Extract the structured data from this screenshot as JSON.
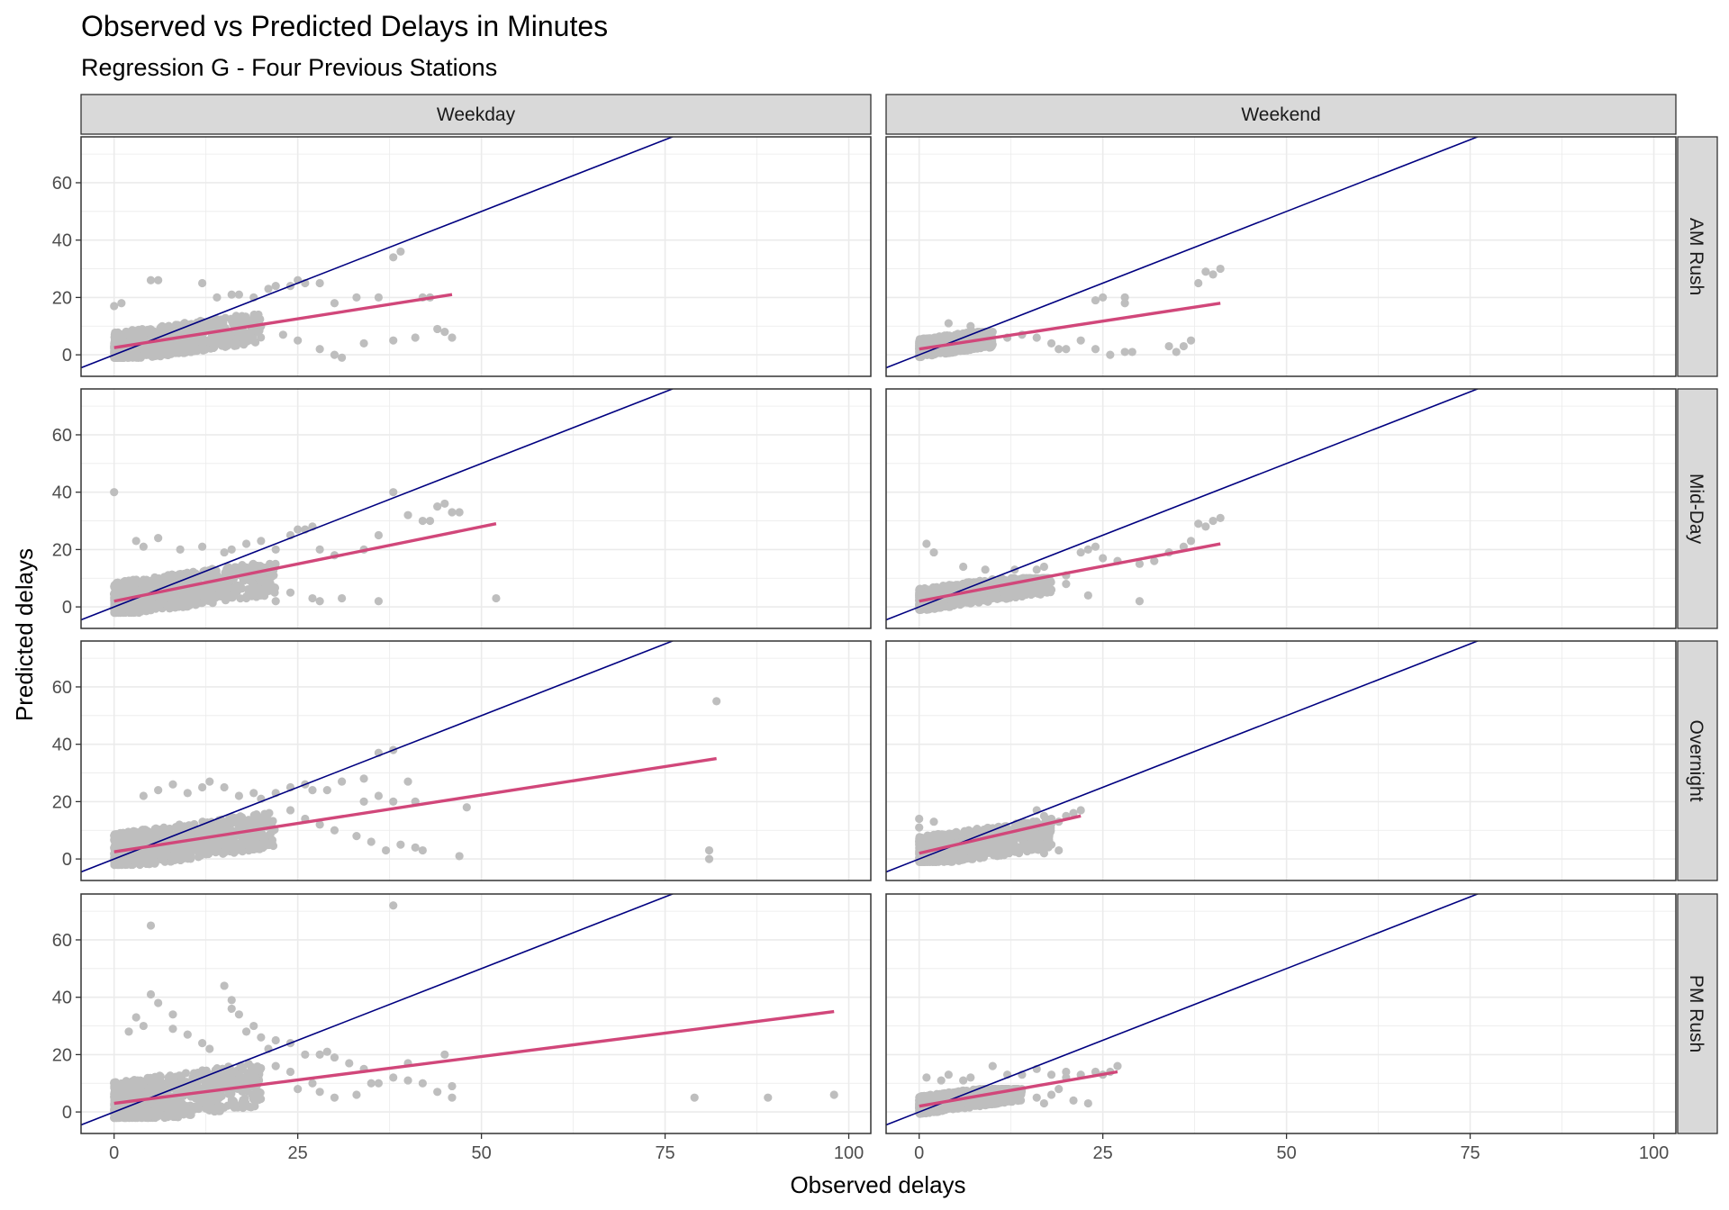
{
  "chart_data": {
    "type": "scatter",
    "title": "Observed vs Predicted Delays in Minutes",
    "subtitle": "Regression G - Four Previous Stations",
    "xlabel": "Observed delays",
    "ylabel": "Predicted delays",
    "xlim": [
      -4.5,
      103
    ],
    "ylim": [
      -7.5,
      76
    ],
    "x_ticks": [
      0,
      25,
      50,
      75,
      100
    ],
    "y_ticks": [
      0,
      20,
      40,
      60
    ],
    "grid": true,
    "columns": [
      "Weekday",
      "Weekend"
    ],
    "rows": [
      "AM Rush",
      "Mid-Day",
      "Overnight",
      "PM Rush"
    ],
    "colors": {
      "points": "#bebebe",
      "fit_line": "#d1477a",
      "identity_line": "#000080",
      "strip_fill": "#d9d9d9",
      "panel_border": "#333333",
      "grid": "#ebebeb"
    },
    "panels": [
      {
        "column": "Weekday",
        "row": "AM Rush",
        "fit": {
          "x": [
            0,
            46
          ],
          "y": [
            2.5,
            21
          ]
        },
        "cluster": {
          "x_max": 20,
          "y_min": -1,
          "y_max": 14
        },
        "points": [
          [
            0,
            17
          ],
          [
            1,
            18
          ],
          [
            5,
            26
          ],
          [
            6,
            26
          ],
          [
            12,
            25
          ],
          [
            14,
            20
          ],
          [
            16,
            21
          ],
          [
            17,
            21
          ],
          [
            19,
            20
          ],
          [
            21,
            23
          ],
          [
            22,
            24
          ],
          [
            24,
            24
          ],
          [
            25,
            26
          ],
          [
            26,
            25
          ],
          [
            28,
            25
          ],
          [
            30,
            18
          ],
          [
            33,
            20
          ],
          [
            36,
            20
          ],
          [
            38,
            34
          ],
          [
            39,
            36
          ],
          [
            42,
            20
          ],
          [
            43,
            20
          ],
          [
            38,
            5
          ],
          [
            41,
            6
          ],
          [
            44,
            9
          ],
          [
            45,
            8
          ],
          [
            46,
            6
          ],
          [
            30,
            0
          ],
          [
            31,
            -1
          ],
          [
            28,
            2
          ],
          [
            25,
            5
          ],
          [
            23,
            7
          ],
          [
            20,
            10
          ],
          [
            34,
            4
          ]
        ]
      },
      {
        "column": "Weekend",
        "row": "AM Rush",
        "fit": {
          "x": [
            0,
            41
          ],
          "y": [
            2,
            18
          ]
        },
        "cluster": {
          "x_max": 10,
          "y_min": -1,
          "y_max": 8
        },
        "points": [
          [
            4,
            11
          ],
          [
            7,
            10
          ],
          [
            10,
            8
          ],
          [
            12,
            6
          ],
          [
            14,
            7
          ],
          [
            16,
            6
          ],
          [
            18,
            4
          ],
          [
            22,
            5
          ],
          [
            24,
            2
          ],
          [
            26,
            0
          ],
          [
            28,
            1
          ],
          [
            29,
            1
          ],
          [
            20,
            2
          ],
          [
            19,
            2
          ],
          [
            24,
            19
          ],
          [
            25,
            20
          ],
          [
            28,
            18
          ],
          [
            28,
            20
          ],
          [
            38,
            25
          ],
          [
            39,
            29
          ],
          [
            40,
            28
          ],
          [
            41,
            30
          ],
          [
            36,
            3
          ],
          [
            37,
            5
          ],
          [
            35,
            1
          ],
          [
            34,
            3
          ]
        ]
      },
      {
        "column": "Weekday",
        "row": "Mid-Day",
        "fit": {
          "x": [
            0,
            52
          ],
          "y": [
            2,
            29
          ]
        },
        "cluster": {
          "x_max": 22,
          "y_min": -2,
          "y_max": 15
        },
        "points": [
          [
            0,
            40
          ],
          [
            3,
            23
          ],
          [
            4,
            21
          ],
          [
            6,
            24
          ],
          [
            9,
            20
          ],
          [
            12,
            21
          ],
          [
            15,
            19
          ],
          [
            16,
            20
          ],
          [
            18,
            22
          ],
          [
            20,
            23
          ],
          [
            22,
            20
          ],
          [
            24,
            25
          ],
          [
            25,
            27
          ],
          [
            26,
            27
          ],
          [
            27,
            28
          ],
          [
            28,
            20
          ],
          [
            30,
            18
          ],
          [
            34,
            20
          ],
          [
            36,
            25
          ],
          [
            38,
            40
          ],
          [
            40,
            32
          ],
          [
            42,
            30
          ],
          [
            43,
            30
          ],
          [
            44,
            35
          ],
          [
            45,
            36
          ],
          [
            46,
            33
          ],
          [
            47,
            33
          ],
          [
            52,
            3
          ],
          [
            36,
            2
          ],
          [
            31,
            3
          ],
          [
            28,
            2
          ],
          [
            27,
            3
          ],
          [
            24,
            5
          ],
          [
            22,
            2
          ],
          [
            20,
            4
          ],
          [
            18,
            3
          ]
        ]
      },
      {
        "column": "Weekend",
        "row": "Mid-Day",
        "fit": {
          "x": [
            0,
            41
          ],
          "y": [
            2,
            22
          ]
        },
        "cluster": {
          "x_max": 18,
          "y_min": -1,
          "y_max": 10
        },
        "points": [
          [
            1,
            22
          ],
          [
            2,
            19
          ],
          [
            6,
            14
          ],
          [
            9,
            13
          ],
          [
            13,
            13
          ],
          [
            16,
            13
          ],
          [
            17,
            14
          ],
          [
            20,
            11
          ],
          [
            22,
            19
          ],
          [
            23,
            20
          ],
          [
            24,
            21
          ],
          [
            25,
            17
          ],
          [
            27,
            16
          ],
          [
            30,
            15
          ],
          [
            32,
            16
          ],
          [
            34,
            19
          ],
          [
            36,
            21
          ],
          [
            37,
            23
          ],
          [
            38,
            29
          ],
          [
            39,
            28
          ],
          [
            40,
            30
          ],
          [
            41,
            31
          ],
          [
            30,
            2
          ],
          [
            23,
            4
          ],
          [
            20,
            8
          ],
          [
            18,
            6
          ]
        ]
      },
      {
        "column": "Weekday",
        "row": "Overnight",
        "fit": {
          "x": [
            0,
            82
          ],
          "y": [
            2.5,
            35
          ]
        },
        "cluster": {
          "x_max": 22,
          "y_min": -2,
          "y_max": 16
        },
        "points": [
          [
            4,
            22
          ],
          [
            6,
            24
          ],
          [
            8,
            26
          ],
          [
            10,
            23
          ],
          [
            12,
            25
          ],
          [
            13,
            27
          ],
          [
            15,
            25
          ],
          [
            17,
            22
          ],
          [
            19,
            23
          ],
          [
            20,
            21
          ],
          [
            22,
            23
          ],
          [
            24,
            25
          ],
          [
            26,
            26
          ],
          [
            27,
            24
          ],
          [
            29,
            24
          ],
          [
            31,
            27
          ],
          [
            34,
            28
          ],
          [
            36,
            37
          ],
          [
            38,
            38
          ],
          [
            40,
            27
          ],
          [
            41,
            20
          ],
          [
            48,
            18
          ],
          [
            39,
            5
          ],
          [
            41,
            4
          ],
          [
            42,
            3
          ],
          [
            47,
            1
          ],
          [
            37,
            3
          ],
          [
            35,
            6
          ],
          [
            33,
            8
          ],
          [
            30,
            10
          ],
          [
            28,
            12
          ],
          [
            26,
            14
          ],
          [
            24,
            17
          ],
          [
            82,
            55
          ],
          [
            81,
            3
          ],
          [
            81,
            0
          ],
          [
            36,
            22
          ],
          [
            38,
            20
          ],
          [
            34,
            20
          ]
        ]
      },
      {
        "column": "Weekend",
        "row": "Overnight",
        "fit": {
          "x": [
            0,
            22
          ],
          "y": [
            2,
            15
          ]
        },
        "cluster": {
          "x_max": 18,
          "y_min": -1,
          "y_max": 14
        },
        "points": [
          [
            0,
            14
          ],
          [
            0,
            11
          ],
          [
            2,
            13
          ],
          [
            16,
            17
          ],
          [
            17,
            15
          ],
          [
            18,
            14
          ],
          [
            19,
            13
          ],
          [
            20,
            15
          ],
          [
            21,
            16
          ],
          [
            22,
            17
          ],
          [
            18,
            5
          ],
          [
            19,
            3
          ],
          [
            17,
            2
          ],
          [
            16,
            4
          ]
        ]
      },
      {
        "column": "Weekday",
        "row": "PM Rush",
        "fit": {
          "x": [
            0,
            98
          ],
          "y": [
            3,
            35
          ]
        },
        "cluster": {
          "x_max": 20,
          "y_min": -2,
          "y_max": 20
        },
        "points": [
          [
            5,
            65
          ],
          [
            5,
            41
          ],
          [
            6,
            38
          ],
          [
            8,
            34
          ],
          [
            3,
            33
          ],
          [
            2,
            28
          ],
          [
            4,
            30
          ],
          [
            8,
            29
          ],
          [
            10,
            27
          ],
          [
            12,
            24
          ],
          [
            13,
            22
          ],
          [
            15,
            44
          ],
          [
            16,
            39
          ],
          [
            16,
            36
          ],
          [
            17,
            34
          ],
          [
            18,
            28
          ],
          [
            19,
            30
          ],
          [
            20,
            26
          ],
          [
            21,
            22
          ],
          [
            22,
            25
          ],
          [
            24,
            24
          ],
          [
            26,
            20
          ],
          [
            28,
            20
          ],
          [
            29,
            21
          ],
          [
            30,
            19
          ],
          [
            32,
            17
          ],
          [
            34,
            15
          ],
          [
            35,
            10
          ],
          [
            38,
            12
          ],
          [
            40,
            17
          ],
          [
            42,
            10
          ],
          [
            45,
            20
          ],
          [
            46,
            5
          ],
          [
            38,
            72
          ],
          [
            36,
            10
          ],
          [
            40,
            11
          ],
          [
            28,
            7
          ],
          [
            30,
            5
          ],
          [
            33,
            6
          ],
          [
            25,
            8
          ],
          [
            27,
            10
          ],
          [
            24,
            14
          ],
          [
            22,
            16
          ],
          [
            79,
            5
          ],
          [
            89,
            5
          ],
          [
            98,
            6
          ],
          [
            44,
            7
          ],
          [
            46,
            9
          ]
        ]
      },
      {
        "column": "Weekend",
        "row": "PM Rush",
        "fit": {
          "x": [
            0,
            27
          ],
          "y": [
            2,
            14
          ]
        },
        "cluster": {
          "x_max": 14,
          "y_min": -1,
          "y_max": 8
        },
        "points": [
          [
            1,
            12
          ],
          [
            3,
            11
          ],
          [
            4,
            13
          ],
          [
            6,
            11
          ],
          [
            7,
            12
          ],
          [
            10,
            16
          ],
          [
            12,
            13
          ],
          [
            14,
            13
          ],
          [
            16,
            15
          ],
          [
            18,
            13
          ],
          [
            20,
            14
          ],
          [
            20,
            12
          ],
          [
            22,
            13
          ],
          [
            24,
            14
          ],
          [
            26,
            14
          ],
          [
            27,
            16
          ],
          [
            25,
            13
          ],
          [
            23,
            3
          ],
          [
            21,
            4
          ],
          [
            18,
            6
          ],
          [
            16,
            5
          ],
          [
            17,
            3
          ],
          [
            19,
            8
          ]
        ]
      }
    ]
  }
}
